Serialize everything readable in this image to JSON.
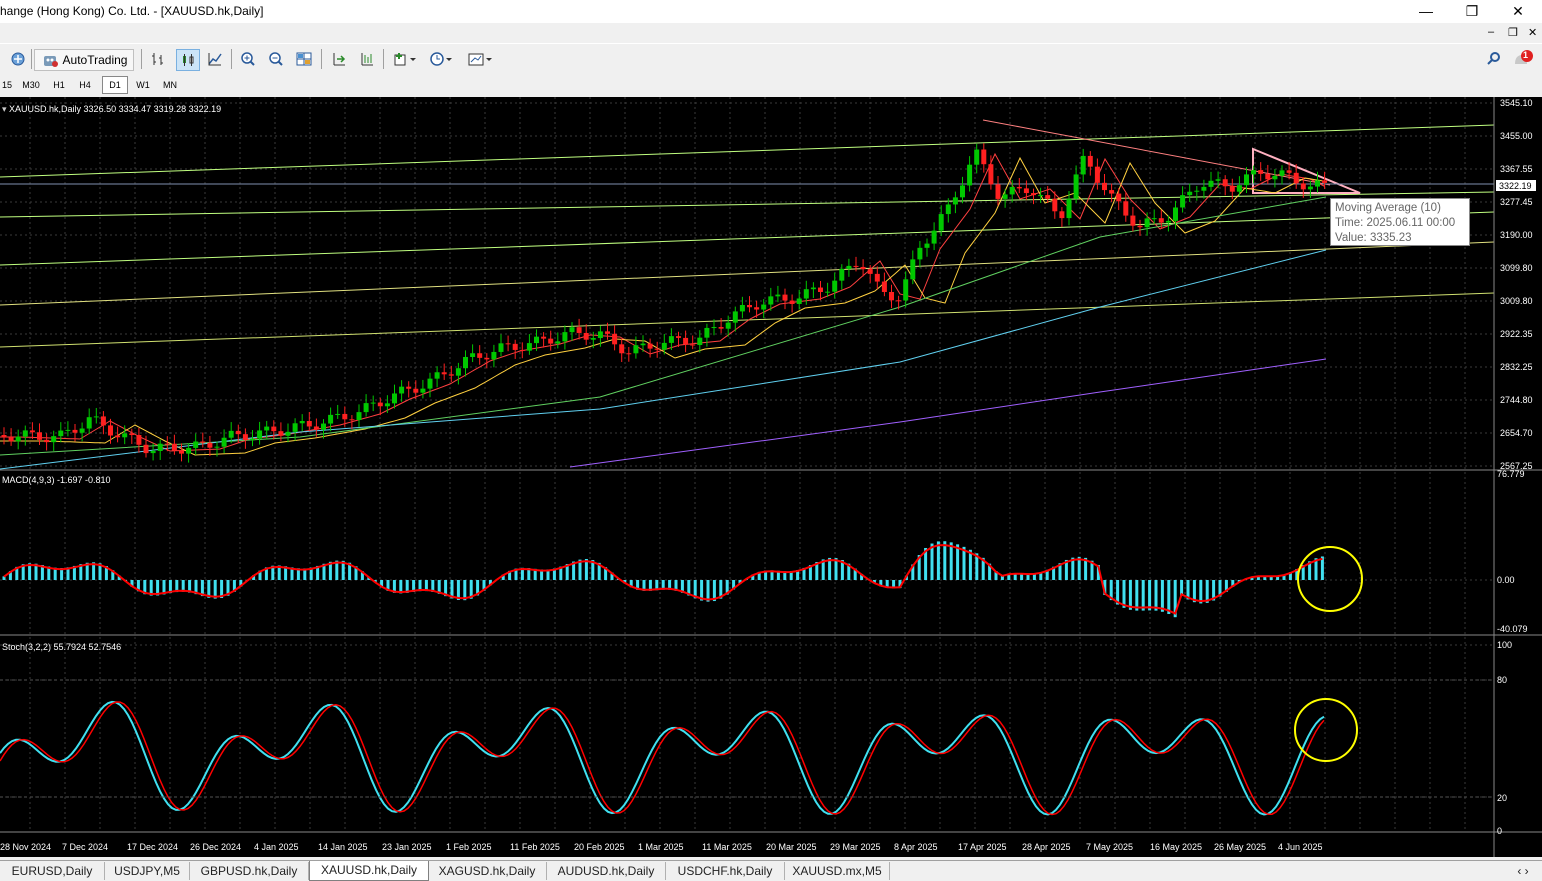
{
  "window": {
    "title": "hange (Hong Kong) Co. Ltd. - [XAUUSD.hk,Daily]",
    "minimize": "—",
    "maximize": "❐",
    "close": "✕",
    "mdi_minimize": "–",
    "mdi_restore": "❐",
    "mdi_close": "✕"
  },
  "toolbar": {
    "autotrading_label": "AutoTrading",
    "notification_count": "1"
  },
  "timeframes": [
    "15",
    "M30",
    "H1",
    "H4",
    "D1",
    "W1",
    "MN"
  ],
  "active_timeframe": "D1",
  "chart": {
    "symbol_header": "XAUUSD.hk,Daily  3326.50 3334.47 3319.28 3322.19",
    "price_labels": [
      "3545.10",
      "3455.00",
      "3367.55",
      "3277.45",
      "3190.00",
      "3099.80",
      "3009.80",
      "2922.35",
      "2832.25",
      "2744.80",
      "2654.70",
      "2567.25"
    ],
    "current_price": "3322.19",
    "tooltip": {
      "name": "Moving Average (10)",
      "time": "Time: 2025.06.11 00:00",
      "value": "Value: 3335.23"
    },
    "date_labels": [
      "28 Nov 2024",
      "7 Dec 2024",
      "17 Dec 2024",
      "26 Dec 2024",
      "4 Jan 2025",
      "14 Jan 2025",
      "23 Jan 2025",
      "1 Feb 2025",
      "11 Feb 2025",
      "20 Feb 2025",
      "1 Mar 2025",
      "11 Mar 2025",
      "20 Mar 2025",
      "29 Mar 2025",
      "8 Apr 2025",
      "17 Apr 2025",
      "28 Apr 2025",
      "7 May 2025",
      "16 May 2025",
      "26 May 2025",
      "4 Jun 2025"
    ]
  },
  "macd": {
    "header": "MACD(4,9,3) -1.697 -0.810",
    "labels": [
      "76.779",
      "0.00",
      "-40.079"
    ]
  },
  "stoch": {
    "header": "Stoch(3,2,2) 55.7924 52.7546",
    "labels": [
      "100",
      "80",
      "20",
      "0"
    ]
  },
  "tabs": [
    "EURUSD,Daily",
    "USDJPY,M5",
    "GBPUSD.hk,Daily",
    "XAUUSD.hk,Daily",
    "XAGUSD.hk,Daily",
    "AUDUSD.hk,Daily",
    "USDCHF.hk,Daily",
    "XAUUSD.mx,M5"
  ],
  "active_tab": "XAUUSD.hk,Daily",
  "colors": {
    "chart_bg": "#000000",
    "bull_candle": "#00c800",
    "bear_candle": "#ff2020",
    "macd_hist": "#40e0f0",
    "signal_line": "#ff0000",
    "stoch_main": "#40e0f0",
    "highlight_circle": "#ffff00"
  }
}
